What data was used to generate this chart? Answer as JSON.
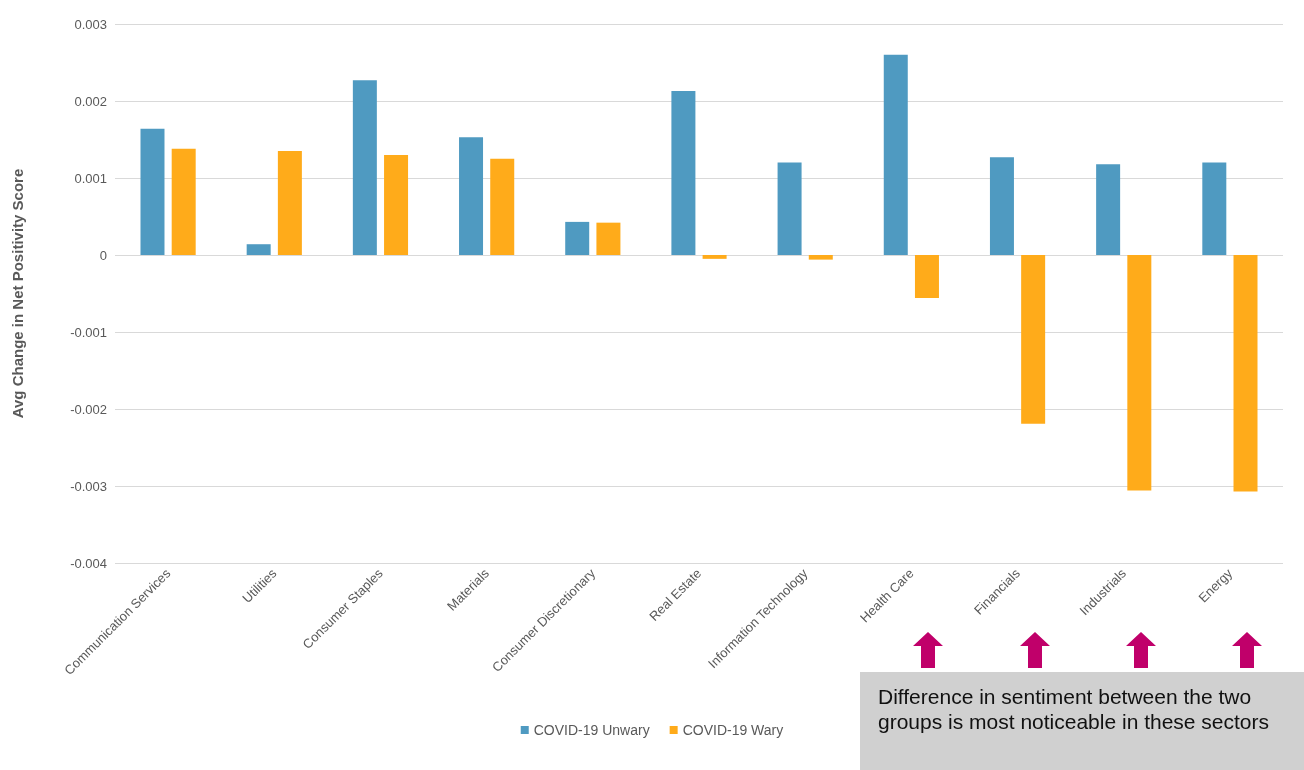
{
  "chart_data": {
    "type": "bar",
    "ylabel": "Avg Change in Net Positivity Score",
    "categories": [
      "Communication Services",
      "Utilities",
      "Consumer Staples",
      "Materials",
      "Consumer Discretionary",
      "Real Estate",
      "Information Technology",
      "Health Care",
      "Financials",
      "Industrials",
      "Energy"
    ],
    "series": [
      {
        "name": "COVID-19 Unwary",
        "color": "#4f9ac1",
        "values": [
          0.00164,
          0.00014,
          0.00227,
          0.00153,
          0.00043,
          0.00213,
          0.0012,
          0.0026,
          0.00127,
          0.00118,
          0.0012
        ]
      },
      {
        "name": "COVID-19 Wary",
        "color": "#ffab1a",
        "values": [
          0.00138,
          0.00135,
          0.0013,
          0.00125,
          0.00042,
          -5e-05,
          -6e-05,
          -0.00056,
          -0.00219,
          -0.00306,
          -0.00307
        ]
      }
    ],
    "ylim": [
      -0.004,
      0.003
    ],
    "yticks": [
      -0.004,
      -0.003,
      -0.002,
      -0.001,
      0,
      0.001,
      0.002,
      0.003
    ],
    "grid": "y",
    "legend": "bottom",
    "annotations": [
      "Difference in sentiment between the two groups is most noticeable in these sectors"
    ]
  }
}
